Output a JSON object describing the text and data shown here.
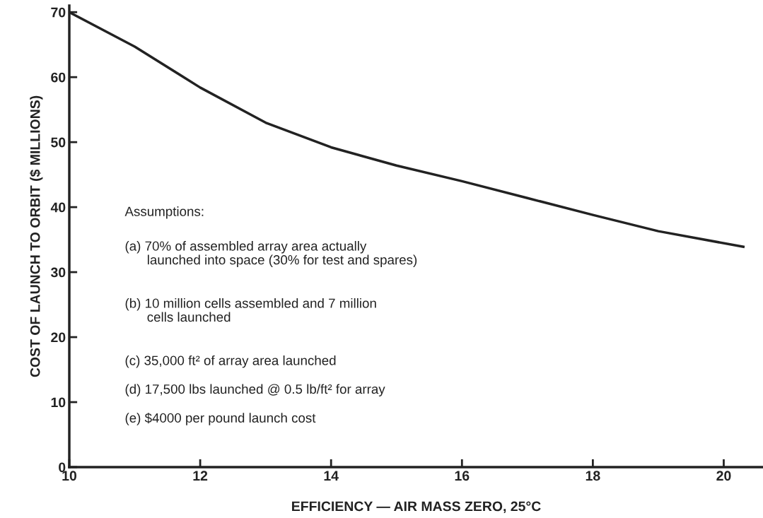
{
  "chart_data": {
    "type": "line",
    "xlabel": "EFFICIENCY — AIR MASS ZERO, 25°C",
    "ylabel": "COST OF LAUNCH TO ORBIT ($ MILLIONS)",
    "x": [
      10,
      11,
      12,
      13,
      14,
      15,
      16,
      17,
      18,
      19,
      20.3
    ],
    "series": [
      {
        "color": "#222222",
        "values": [
          70,
          64.7,
          58.4,
          53.0,
          49.2,
          46.4,
          44.0,
          41.4,
          38.8,
          36.3,
          33.9
        ]
      }
    ],
    "xlim": [
      10,
      20.6
    ],
    "xticks": [
      10,
      12,
      14,
      16,
      18,
      20
    ],
    "ylim": [
      0,
      71
    ],
    "yticks": [
      0,
      10,
      20,
      30,
      40,
      50,
      60,
      70
    ],
    "grid": false,
    "marker": "none",
    "line_style": "solid",
    "annotations": [
      "Assumptions:",
      "(a) 70% of assembled array area actually\n      launched into space (30% for test and spares)",
      "(b) 10 million cells assembled and 7 million\n      cells launched",
      "(c) 35,000 ft² of array area launched",
      "(d) 17,500 lbs launched @ 0.5 lb/ft² for array",
      "(e) $4000 per pound launch cost"
    ]
  }
}
